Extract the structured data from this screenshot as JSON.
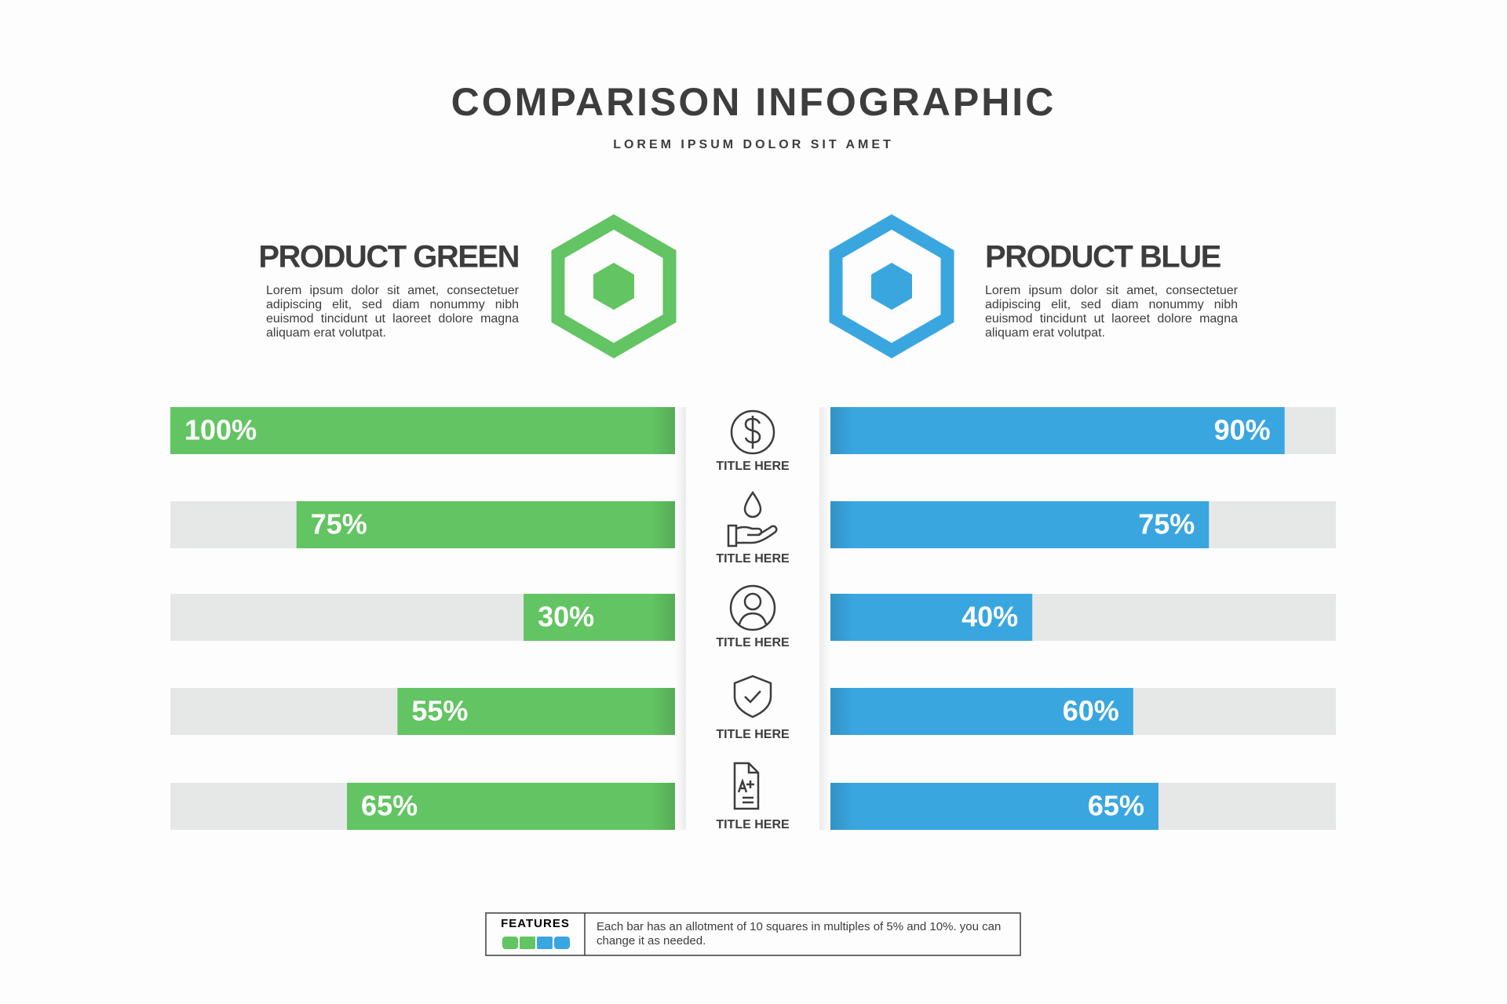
{
  "chart_data": {
    "type": "bar",
    "title": "COMPARISON INFOGRAPHIC",
    "subtitle": "LOREM IPSUM DOLOR SIT AMET",
    "categories": [
      "TITLE HERE",
      "TITLE HERE",
      "TITLE HERE",
      "TITLE HERE",
      "TITLE HERE"
    ],
    "xlim": [
      0,
      100
    ],
    "series": [
      {
        "name": "PRODUCT GREEN",
        "color": "#62c462",
        "description": "Lorem ipsum dolor sit amet, consectetuer adipiscing elit, sed diam nonummy nibh euismod tincidunt ut laoreet dolore magna aliquam erat volutpat.",
        "values": [
          100,
          75,
          30,
          55,
          65
        ],
        "value_labels": [
          "100%",
          "75%",
          "30%",
          "55%",
          "65%"
        ]
      },
      {
        "name": "PRODUCT BLUE",
        "color": "#3aa6e0",
        "description": "Lorem ipsum dolor sit amet, consectetuer adipiscing elit, sed diam nonummy nibh euismod tincidunt ut laoreet dolore magna aliquam erat volutpat.",
        "values": [
          90,
          75,
          40,
          60,
          65
        ],
        "value_labels": [
          "90%",
          "75%",
          "40%",
          "60%",
          "65%"
        ]
      }
    ],
    "legend_title": "FEATURES",
    "note": "Each bar has an allotment of 10 squares in multiples of 5% and 10%. you can change it as needed."
  }
}
